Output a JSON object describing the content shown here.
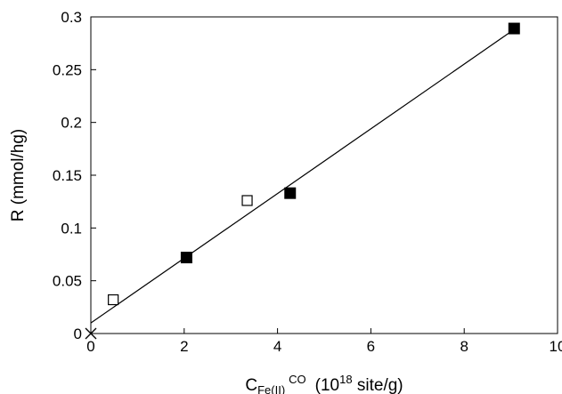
{
  "chart_data": {
    "type": "scatter",
    "xlabel": {
      "main": "C",
      "subscript": "Fe(II)",
      "superscript": "CO",
      "units_prefix": "(10",
      "units_exponent": "18",
      "units_suffix": " site/g)"
    },
    "ylabel": "R (mmol/hg)",
    "xlim": [
      0,
      10
    ],
    "ylim": [
      0,
      0.3
    ],
    "x_ticks": [
      0,
      2,
      4,
      6,
      8,
      10
    ],
    "x_tick_labels": [
      "0",
      "2",
      "4",
      "6",
      "8",
      "10"
    ],
    "y_ticks": [
      0,
      0.05,
      0.1,
      0.15,
      0.2,
      0.25,
      0.3
    ],
    "y_tick_labels": [
      "0",
      "0.05",
      "0.1",
      "0.15",
      "0.2",
      "0.25",
      "0.3"
    ],
    "grid": false,
    "series": [
      {
        "marker": "filled-square",
        "color": "#000000",
        "points": [
          [
            2.05,
            0.072
          ],
          [
            4.27,
            0.133
          ],
          [
            9.07,
            0.289
          ]
        ]
      },
      {
        "marker": "open-square",
        "color": "#000000",
        "points": [
          [
            0.48,
            0.032
          ],
          [
            3.35,
            0.126
          ]
        ]
      },
      {
        "marker": "cross",
        "color": "#000000",
        "points": [
          [
            0,
            0
          ]
        ]
      }
    ],
    "fit_line": {
      "x": [
        0,
        9.1
      ],
      "y": [
        0.01,
        0.289
      ]
    }
  }
}
